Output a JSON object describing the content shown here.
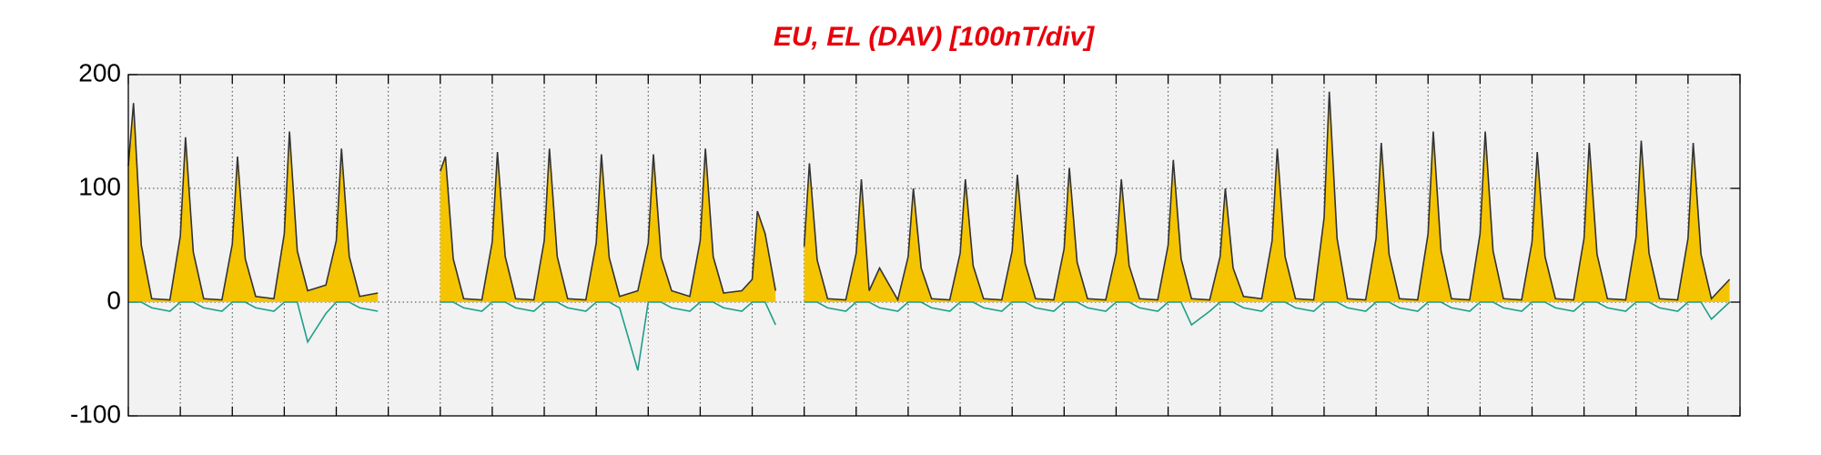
{
  "chart_data": {
    "type": "line",
    "title": "EU, EL (DAV)  [100nT/div]",
    "x": [
      0,
      0.1,
      0.25,
      0.45,
      0.8,
      1,
      1.1,
      1.25,
      1.45,
      1.8,
      2,
      2.1,
      2.25,
      2.45,
      2.8,
      3,
      3.1,
      3.25,
      3.45,
      3.8,
      4,
      4.1,
      4.25,
      4.45,
      4.8,
      5,
      5.1,
      5.25,
      5.45,
      5.8,
      6,
      6.1,
      6.25,
      6.45,
      6.8,
      7,
      7.1,
      7.25,
      7.45,
      7.8,
      8,
      8.1,
      8.25,
      8.45,
      8.8,
      9,
      9.1,
      9.25,
      9.45,
      9.8,
      10,
      10.1,
      10.25,
      10.45,
      10.8,
      11,
      11.1,
      11.25,
      11.45,
      11.8,
      12,
      12.1,
      12.25,
      12.45,
      12.8,
      13,
      13.1,
      13.25,
      13.45,
      13.8,
      14,
      14.1,
      14.25,
      14.45,
      14.8,
      15,
      15.1,
      15.25,
      15.45,
      15.8,
      16,
      16.1,
      16.25,
      16.45,
      16.8,
      17,
      17.1,
      17.25,
      17.45,
      17.8,
      18,
      18.1,
      18.25,
      18.45,
      18.8,
      19,
      19.1,
      19.25,
      19.45,
      19.8,
      20,
      20.1,
      20.25,
      20.45,
      20.8,
      21,
      21.1,
      21.25,
      21.45,
      21.8,
      22,
      22.1,
      22.25,
      22.45,
      22.8,
      23,
      23.1,
      23.25,
      23.45,
      23.8,
      24,
      24.1,
      24.25,
      24.45,
      24.8,
      25,
      25.1,
      25.25,
      25.45,
      25.8,
      26,
      26.1,
      26.25,
      26.45,
      26.8,
      27,
      27.1,
      27.25,
      27.45,
      27.8,
      28,
      28.1,
      28.25,
      28.45,
      28.8,
      29,
      29.1,
      29.25,
      29.45,
      29.8,
      30,
      30.1,
      30.25,
      30.45,
      30.8
    ],
    "series": [
      {
        "color": "#f5c400",
        "line_color": "#333333",
        "values": [
          120,
          175,
          50,
          3,
          2,
          58,
          145,
          44,
          3,
          2,
          51,
          128,
          38,
          5,
          3,
          60,
          150,
          45,
          10,
          15,
          54,
          135,
          40,
          5,
          8,
          null,
          null,
          null,
          null,
          null,
          115,
          128,
          38,
          3,
          2,
          53,
          132,
          40,
          3,
          2,
          54,
          135,
          40,
          3,
          2,
          52,
          130,
          39,
          5,
          10,
          52,
          130,
          39,
          10,
          5,
          54,
          135,
          40,
          8,
          10,
          20,
          80,
          60,
          10,
          null,
          49,
          122,
          37,
          3,
          2,
          43,
          108,
          10,
          30,
          2,
          40,
          100,
          30,
          3,
          2,
          43,
          108,
          32,
          3,
          2,
          45,
          112,
          34,
          3,
          2,
          47,
          118,
          35,
          3,
          2,
          43,
          108,
          32,
          3,
          2,
          50,
          125,
          38,
          3,
          2,
          40,
          100,
          30,
          5,
          3,
          54,
          135,
          40,
          3,
          2,
          74,
          185,
          56,
          3,
          2,
          56,
          140,
          42,
          3,
          2,
          60,
          150,
          45,
          3,
          2,
          60,
          150,
          45,
          3,
          2,
          53,
          132,
          40,
          3,
          2,
          56,
          140,
          42,
          3,
          2,
          57,
          142,
          43,
          3,
          2,
          56,
          140,
          42,
          3,
          20
        ]
      },
      {
        "color": "#1f9e89",
        "values": [
          0,
          0,
          0,
          -5,
          -8,
          0,
          0,
          0,
          -5,
          -8,
          0,
          0,
          0,
          -5,
          -8,
          0,
          0,
          0,
          -35,
          -10,
          0,
          0,
          0,
          -5,
          -8,
          null,
          null,
          null,
          null,
          null,
          0,
          0,
          0,
          -5,
          -8,
          0,
          0,
          0,
          -5,
          -8,
          0,
          0,
          0,
          -5,
          -8,
          0,
          0,
          0,
          -5,
          -60,
          0,
          0,
          0,
          -5,
          -8,
          0,
          0,
          0,
          -5,
          -8,
          0,
          0,
          0,
          -20,
          null,
          0,
          0,
          0,
          -5,
          -8,
          0,
          0,
          0,
          -5,
          -8,
          0,
          0,
          0,
          -5,
          -8,
          0,
          0,
          0,
          -5,
          -8,
          0,
          0,
          0,
          -5,
          -8,
          0,
          0,
          0,
          -5,
          -8,
          0,
          0,
          0,
          -5,
          -8,
          0,
          0,
          0,
          -20,
          -8,
          0,
          0,
          0,
          -5,
          -8,
          0,
          0,
          0,
          -5,
          -8,
          0,
          0,
          0,
          -5,
          -8,
          0,
          0,
          0,
          -5,
          -8,
          0,
          0,
          0,
          -5,
          -8,
          0,
          0,
          0,
          -5,
          -8,
          0,
          0,
          0,
          -5,
          -8,
          0,
          0,
          0,
          -5,
          -8,
          0,
          0,
          0,
          -5,
          -8,
          0,
          0,
          0,
          -15,
          0
        ]
      }
    ],
    "xlim": [
      0,
      31
    ],
    "xticks": [
      0,
      1,
      2,
      3,
      4,
      5,
      6,
      7,
      8,
      9,
      10,
      11,
      12,
      13,
      14,
      15,
      16,
      17,
      18,
      19,
      20,
      21,
      22,
      23,
      24,
      25,
      26,
      27,
      28,
      29,
      30,
      31
    ],
    "ylim": [
      -100,
      200
    ],
    "yticks": [
      -100,
      0,
      100,
      200
    ],
    "grid": true
  }
}
